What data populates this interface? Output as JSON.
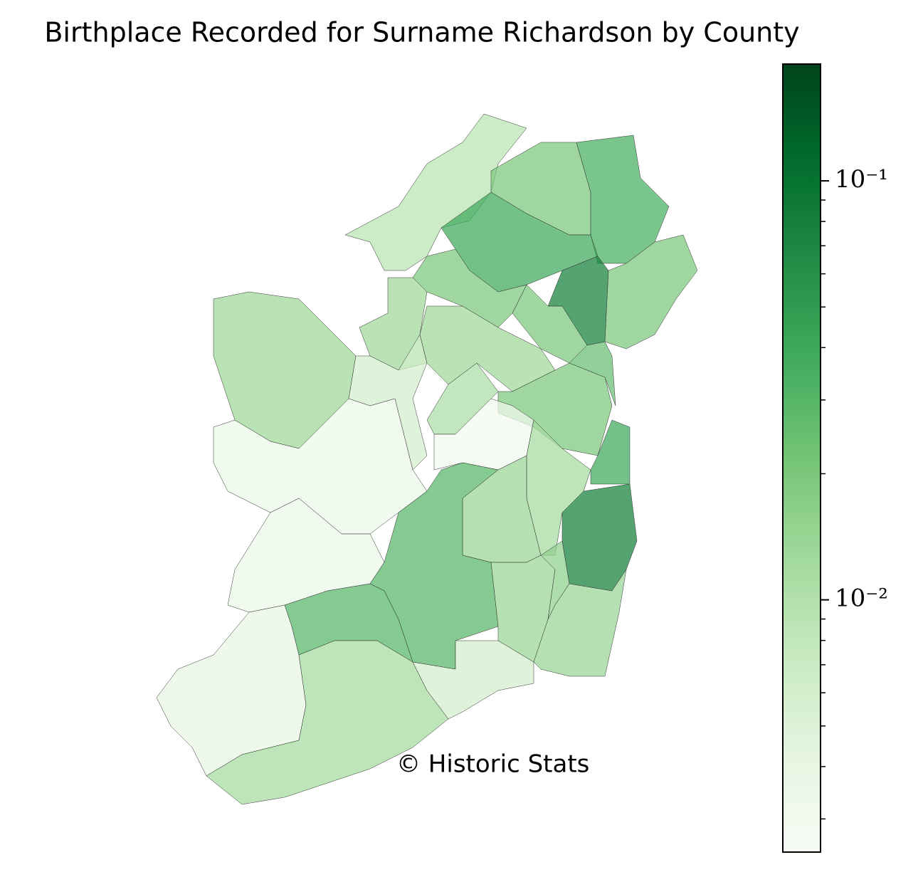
{
  "chart_data": {
    "type": "choropleth",
    "title": "Birthplace Recorded for Surname Richardson by County",
    "annotation": "© Historic Stats",
    "values": [
      0.009,
      0.02,
      0.035,
      0.04,
      0.08,
      0.02,
      0.02,
      0.02,
      0.013,
      0.013,
      0.006,
      0.013,
      0.011,
      0.02,
      0.025,
      0.04,
      0.003,
      0.0035,
      0.012,
      0.08,
      0.014,
      0.0035,
      0.03,
      0.014,
      0.016,
      0.014,
      0.03,
      0.004,
      0.012,
      0.006
    ],
    "colormap": [
      "#f7fcf5",
      "#e5f5e0",
      "#c7e9c0",
      "#a1d99b",
      "#74c476",
      "#41ab5d",
      "#238b45",
      "#006d2c",
      "#00441b"
    ],
    "log_scale": true,
    "ylim": [
      0.0025,
      0.19
    ],
    "yticks": [
      {
        "value": 0.01,
        "label": "10⁻²"
      },
      {
        "value": 0.1,
        "label": "10⁻¹"
      }
    ],
    "minor_yticks": [
      0.003,
      0.004,
      0.005,
      0.006,
      0.007,
      0.008,
      0.009,
      0.02,
      0.03,
      0.04,
      0.05,
      0.06,
      0.07,
      0.08,
      0.09
    ]
  }
}
